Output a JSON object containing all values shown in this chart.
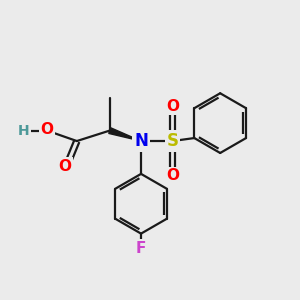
{
  "bg_color": "#ebebeb",
  "bond_color": "#1a1a1a",
  "atom_colors": {
    "O": "#ff0000",
    "N": "#0000ee",
    "S": "#bbbb00",
    "F": "#cc44cc",
    "H": "#4d9999",
    "C": "#1a1a1a"
  },
  "figsize": [
    3.0,
    3.0
  ],
  "dpi": 100,
  "lw": 1.6,
  "fs": 10
}
